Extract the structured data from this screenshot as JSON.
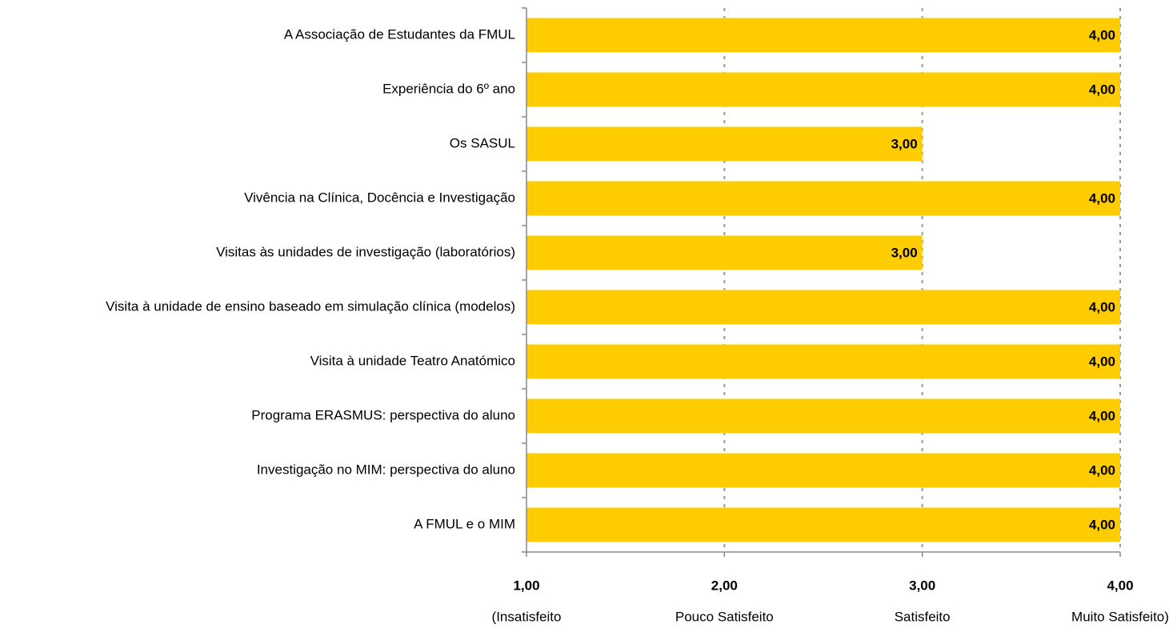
{
  "chart_data": {
    "type": "bar",
    "orientation": "horizontal",
    "categories": [
      "A Associação de Estudantes da FMUL",
      "Experiência do 6º ano",
      "Os SASUL",
      "Vivência na Clínica, Docência e Investigação",
      "Visitas às unidades de investigação (laboratórios)",
      "Visita à unidade de ensino baseado em simulação clínica (modelos)",
      "Visita à unidade Teatro Anatómico",
      "Programa ERASMUS: perspectiva do aluno",
      "Investigação no MIM: perspectiva do aluno",
      "A FMUL e o MIM"
    ],
    "values": [
      4,
      4,
      3,
      4,
      3,
      4,
      4,
      4,
      4,
      4
    ],
    "value_labels": [
      "4,00",
      "4,00",
      "3,00",
      "4,00",
      "3,00",
      "4,00",
      "4,00",
      "4,00",
      "4,00",
      "4,00"
    ],
    "color": "#ffcc00",
    "xlim": [
      1,
      4
    ],
    "xticks": [
      {
        "value": 1,
        "label": "1,00"
      },
      {
        "value": 2,
        "label": "2,00"
      },
      {
        "value": 3,
        "label": "3,00"
      },
      {
        "value": 4,
        "label": "4,00"
      }
    ],
    "xtick_captions": [
      "(Insatisfeito",
      "Pouco Satisfeito",
      "Satisfeito",
      "Muito Satisfeito)"
    ],
    "grid": true
  }
}
